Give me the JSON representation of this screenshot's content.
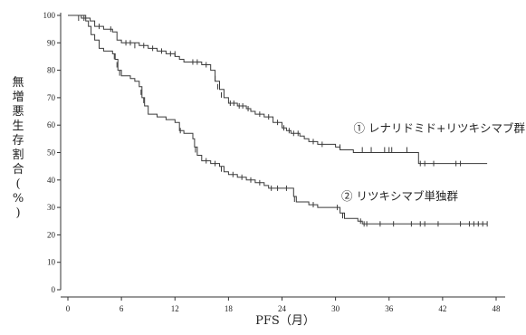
{
  "chart_data": {
    "type": "line",
    "step": true,
    "xlabel": "PFS（月）",
    "ylabel": "無増悪生存割合(%)",
    "xlim": [
      0,
      48
    ],
    "ylim": [
      0,
      100
    ],
    "xticks": [
      0,
      6,
      12,
      18,
      24,
      30,
      36,
      42,
      48
    ],
    "yticks": [
      0,
      10,
      20,
      30,
      40,
      50,
      60,
      70,
      80,
      90,
      100
    ],
    "grid": false,
    "legend": "none",
    "annotations": [
      {
        "text": "① レナリドミド+リツキシマブ群",
        "series": 0
      },
      {
        "text": "② リツキシマブ単独群",
        "series": 1
      }
    ],
    "series": [
      {
        "name": "① レナリドミド+リツキシマブ群",
        "points": [
          [
            0,
            100
          ],
          [
            2,
            99
          ],
          [
            2.5,
            98
          ],
          [
            3,
            96
          ],
          [
            4,
            95
          ],
          [
            5,
            94
          ],
          [
            5.5,
            91
          ],
          [
            6,
            90
          ],
          [
            8,
            89
          ],
          [
            9,
            88
          ],
          [
            10,
            87
          ],
          [
            11,
            86
          ],
          [
            12,
            85
          ],
          [
            12.5,
            84
          ],
          [
            13,
            83
          ],
          [
            15,
            82
          ],
          [
            16,
            80
          ],
          [
            16.5,
            76
          ],
          [
            17,
            73
          ],
          [
            17.5,
            70
          ],
          [
            18,
            68
          ],
          [
            19,
            67
          ],
          [
            20,
            66
          ],
          [
            20.5,
            65
          ],
          [
            21,
            64
          ],
          [
            22,
            63
          ],
          [
            23,
            61
          ],
          [
            24,
            59
          ],
          [
            24.5,
            58
          ],
          [
            25,
            57
          ],
          [
            26,
            56
          ],
          [
            26.5,
            55
          ],
          [
            27,
            54
          ],
          [
            28,
            53
          ],
          [
            30,
            52
          ],
          [
            30.5,
            51
          ],
          [
            32,
            50
          ],
          [
            39,
            50
          ],
          [
            39.3,
            46
          ],
          [
            47,
            46
          ]
        ],
        "censored": [
          [
            1.8,
            99
          ],
          [
            3.5,
            96
          ],
          [
            4.8,
            95
          ],
          [
            6.5,
            90
          ],
          [
            7,
            90
          ],
          [
            7.5,
            89
          ],
          [
            8.5,
            89
          ],
          [
            9.5,
            88
          ],
          [
            10.5,
            87
          ],
          [
            11.5,
            86
          ],
          [
            12,
            86
          ],
          [
            14,
            83
          ],
          [
            14.5,
            83
          ],
          [
            15.5,
            82
          ],
          [
            16.5,
            77
          ],
          [
            16.8,
            74
          ],
          [
            17.2,
            71
          ],
          [
            18.2,
            68
          ],
          [
            18.6,
            68
          ],
          [
            19.2,
            67
          ],
          [
            19.6,
            67
          ],
          [
            20.2,
            66
          ],
          [
            21.5,
            64
          ],
          [
            22.5,
            63
          ],
          [
            23.5,
            61
          ],
          [
            24.2,
            59
          ],
          [
            24.8,
            58
          ],
          [
            25.3,
            57
          ],
          [
            25.8,
            57
          ],
          [
            27.5,
            54
          ],
          [
            28.5,
            53
          ],
          [
            30.5,
            52
          ],
          [
            33,
            51
          ],
          [
            34,
            51
          ],
          [
            35.5,
            51
          ],
          [
            36,
            51
          ],
          [
            36.3,
            51
          ],
          [
            38,
            51
          ],
          [
            39.5,
            46
          ],
          [
            40,
            46
          ],
          [
            41,
            46
          ],
          [
            43.5,
            46
          ],
          [
            44,
            46
          ]
        ]
      },
      {
        "name": "② リツキシマブ単独群",
        "points": [
          [
            0,
            100
          ],
          [
            1.5,
            99
          ],
          [
            2,
            98
          ],
          [
            2.3,
            96
          ],
          [
            2.6,
            93
          ],
          [
            3,
            91
          ],
          [
            3.5,
            88
          ],
          [
            4,
            87
          ],
          [
            5,
            86
          ],
          [
            5.3,
            84
          ],
          [
            5.6,
            80
          ],
          [
            6,
            78
          ],
          [
            7,
            77
          ],
          [
            7.5,
            76
          ],
          [
            8,
            74
          ],
          [
            8.3,
            70
          ],
          [
            8.6,
            67
          ],
          [
            9,
            64
          ],
          [
            10,
            63
          ],
          [
            11,
            62
          ],
          [
            12,
            61
          ],
          [
            12.5,
            58
          ],
          [
            13,
            57
          ],
          [
            14,
            55
          ],
          [
            14.2,
            52
          ],
          [
            14.5,
            49
          ],
          [
            15,
            47
          ],
          [
            16,
            46
          ],
          [
            17,
            45
          ],
          [
            17.5,
            43
          ],
          [
            18,
            42
          ],
          [
            19,
            41
          ],
          [
            20,
            40
          ],
          [
            21,
            39
          ],
          [
            22,
            38
          ],
          [
            22.5,
            37
          ],
          [
            25,
            37
          ],
          [
            25.3,
            34
          ],
          [
            25.6,
            32
          ],
          [
            26,
            32
          ],
          [
            27,
            31
          ],
          [
            28,
            30
          ],
          [
            30,
            30
          ],
          [
            30.5,
            28
          ],
          [
            31,
            26
          ],
          [
            32,
            26
          ],
          [
            32.5,
            25
          ],
          [
            33,
            24
          ],
          [
            47,
            24
          ]
        ],
        "censored": [
          [
            1.2,
            99
          ],
          [
            5.2,
            85
          ],
          [
            5.5,
            82
          ],
          [
            5.8,
            79
          ],
          [
            8.2,
            72
          ],
          [
            8.5,
            69
          ],
          [
            12.6,
            58
          ],
          [
            14.3,
            51
          ],
          [
            15.5,
            47
          ],
          [
            16.5,
            46
          ],
          [
            17.2,
            44
          ],
          [
            18.5,
            42
          ],
          [
            19.5,
            41
          ],
          [
            20.5,
            40
          ],
          [
            21.5,
            39
          ],
          [
            22.8,
            37
          ],
          [
            23.5,
            37
          ],
          [
            24.5,
            37
          ],
          [
            25.4,
            33
          ],
          [
            27.5,
            31
          ],
          [
            30.2,
            30
          ],
          [
            30.8,
            27
          ],
          [
            32.8,
            25
          ],
          [
            33.2,
            24
          ],
          [
            33.5,
            24
          ],
          [
            35,
            24
          ],
          [
            36.5,
            24
          ],
          [
            38.5,
            24
          ],
          [
            39.5,
            24
          ],
          [
            40,
            24
          ],
          [
            41.5,
            24
          ],
          [
            44,
            24
          ],
          [
            45,
            24
          ],
          [
            45.5,
            24
          ],
          [
            46,
            24
          ],
          [
            46.5,
            24
          ],
          [
            47,
            24
          ]
        ]
      }
    ]
  }
}
